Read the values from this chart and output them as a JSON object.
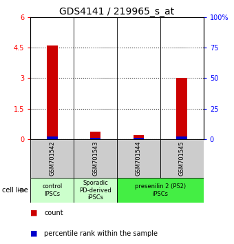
{
  "title": "GDS4141 / 219965_s_at",
  "samples": [
    "GSM701542",
    "GSM701543",
    "GSM701544",
    "GSM701545"
  ],
  "count_values": [
    4.6,
    0.35,
    0.2,
    3.0
  ],
  "percentile_values": [
    0.13,
    0.06,
    0.05,
    0.13
  ],
  "ylim_left": [
    0,
    6
  ],
  "ylim_right": [
    0,
    100
  ],
  "yticks_left": [
    0,
    1.5,
    3.0,
    4.5,
    6.0
  ],
  "yticks_right": [
    0,
    25,
    50,
    75,
    100
  ],
  "ytick_labels_left": [
    "0",
    "1.5",
    "3",
    "4.5",
    "6"
  ],
  "ytick_labels_right": [
    "0",
    "25",
    "50",
    "75",
    "100%"
  ],
  "bar_color_count": "#cc0000",
  "bar_color_pct": "#0000cc",
  "group_info": [
    {
      "label": "control\nIPSCs",
      "color": "#ccffcc",
      "xstart": -0.5,
      "xend": 0.5
    },
    {
      "label": "Sporadic\nPD-derived\niPSCs",
      "color": "#ccffcc",
      "xstart": 0.5,
      "xend": 1.5
    },
    {
      "label": "presenilin 2 (PS2)\niPSCs",
      "color": "#44ee44",
      "xstart": 1.5,
      "xend": 3.5
    }
  ],
  "cell_line_label": "cell line",
  "legend_count_label": "count",
  "legend_pct_label": "percentile rank within the sample",
  "title_fontsize": 10,
  "tick_fontsize": 7,
  "sample_fontsize": 6,
  "group_fontsize": 6,
  "legend_fontsize": 7
}
